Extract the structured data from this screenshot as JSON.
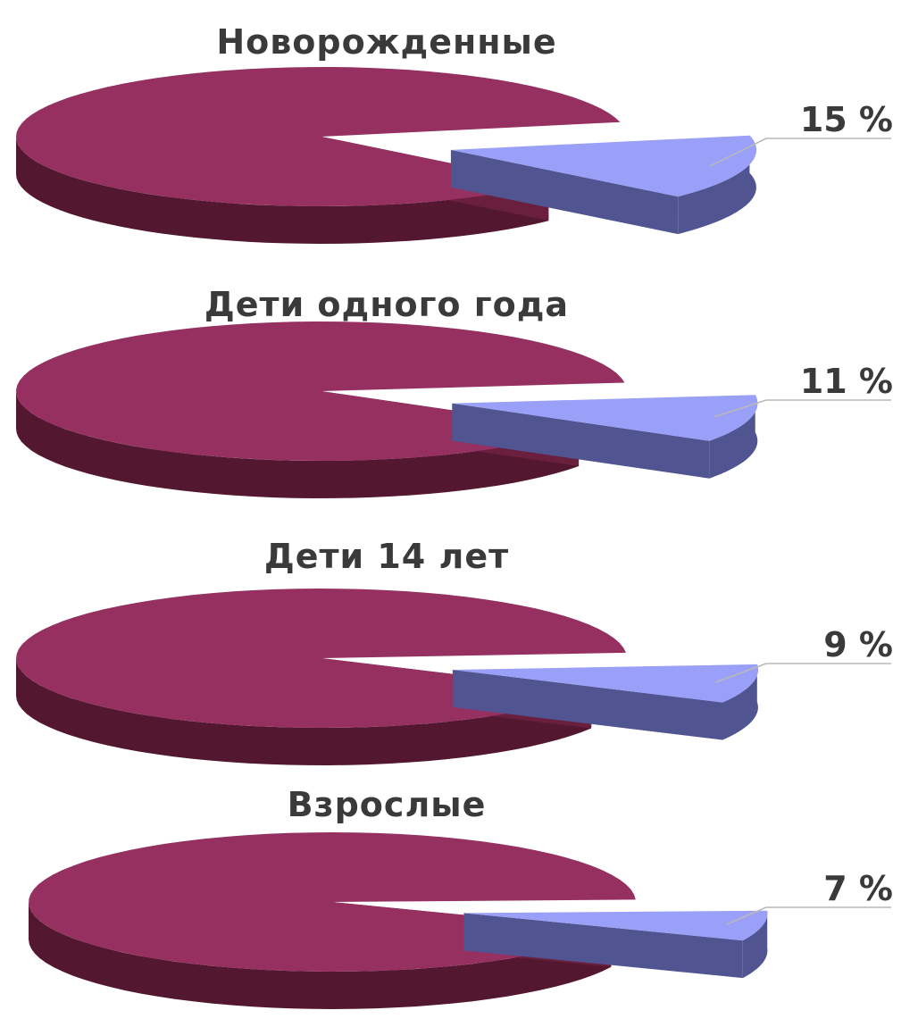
{
  "chart_data": [
    {
      "type": "pie",
      "style": "3d-exploded",
      "title": "Новорожденные",
      "slices": [
        {
          "value": 85,
          "color": "#953060",
          "side_color": "#53172f",
          "wall_color": "#6a1f3f"
        },
        {
          "value": 15,
          "label": "15 %",
          "color": "#9a9ff8",
          "side_color": "#505490",
          "wall_color": "#7077c6",
          "exploded": true
        }
      ]
    },
    {
      "type": "pie",
      "style": "3d-exploded",
      "title": "Дети одного года",
      "slices": [
        {
          "value": 89,
          "color": "#953060",
          "side_color": "#53172f",
          "wall_color": "#6a1f3f"
        },
        {
          "value": 11,
          "label": "11 %",
          "color": "#9a9ff8",
          "side_color": "#505490",
          "wall_color": "#7077c6",
          "exploded": true
        }
      ]
    },
    {
      "type": "pie",
      "style": "3d-exploded",
      "title": "Дети 14 лет",
      "slices": [
        {
          "value": 91,
          "color": "#953060",
          "side_color": "#53172f",
          "wall_color": "#6a1f3f"
        },
        {
          "value": 9,
          "label": "9 %",
          "color": "#9a9ff8",
          "side_color": "#505490",
          "wall_color": "#7077c6",
          "exploded": true
        }
      ]
    },
    {
      "type": "pie",
      "style": "3d-exploded",
      "title": "Взрослые",
      "slices": [
        {
          "value": 93,
          "color": "#953060",
          "side_color": "#53172f",
          "wall_color": "#6a1f3f"
        },
        {
          "value": 7,
          "label": "7 %",
          "color": "#9a9ff8",
          "side_color": "#505490",
          "wall_color": "#7077c6",
          "exploded": true
        }
      ]
    }
  ]
}
